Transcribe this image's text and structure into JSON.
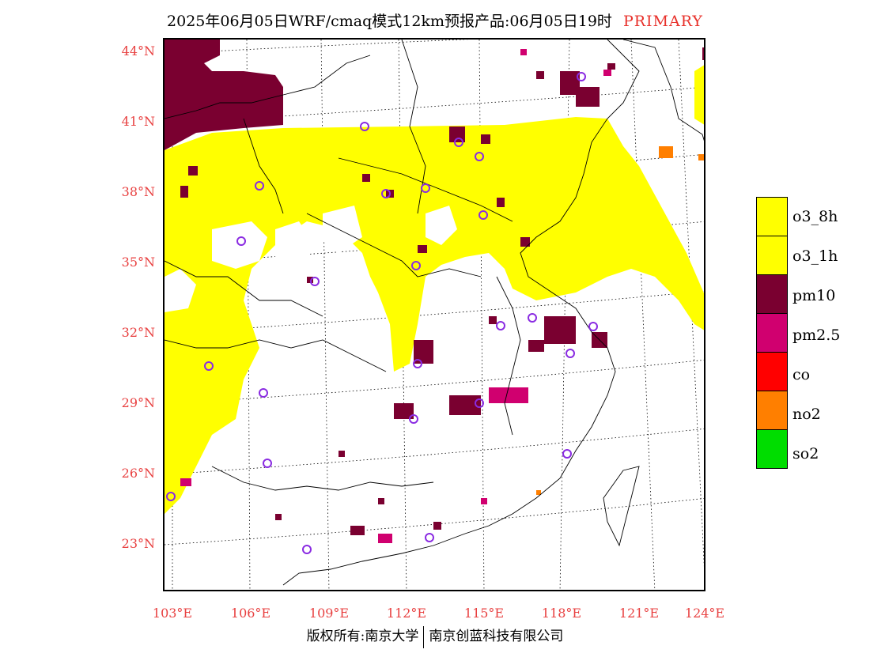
{
  "title": "2025年06月05日WRF/cmaq模式12km预报产品:06月05日19时",
  "title_flag": "PRIMARY",
  "lat_labels": [
    "44°N",
    "41°N",
    "38°N",
    "35°N",
    "32°N",
    "29°N",
    "26°N",
    "23°N"
  ],
  "lon_labels": [
    "103°E",
    "106°E",
    "109°E",
    "112°E",
    "115°E",
    "118°E",
    "121°E",
    "124°E"
  ],
  "legend": [
    {
      "label": "o3_8h",
      "color": "#ffff00"
    },
    {
      "label": "o3_1h",
      "color": "#ffff00"
    },
    {
      "label": "pm10",
      "color": "#7a0030"
    },
    {
      "label": "pm2.5",
      "color": "#d0006f"
    },
    {
      "label": "co",
      "color": "#ff0000"
    },
    {
      "label": "no2",
      "color": "#ff7f00"
    },
    {
      "label": "so2",
      "color": "#00dd00"
    }
  ],
  "footer": {
    "left": "版权所有:南京大学",
    "right": "南京创蓝科技有限公司"
  },
  "colors": {
    "axis_labels": "#e84040",
    "o3": "#ffff00",
    "pm10": "#7a0030",
    "pm25": "#d0006f",
    "no2": "#ff7f00",
    "station_marker": "#8a2be2"
  }
}
